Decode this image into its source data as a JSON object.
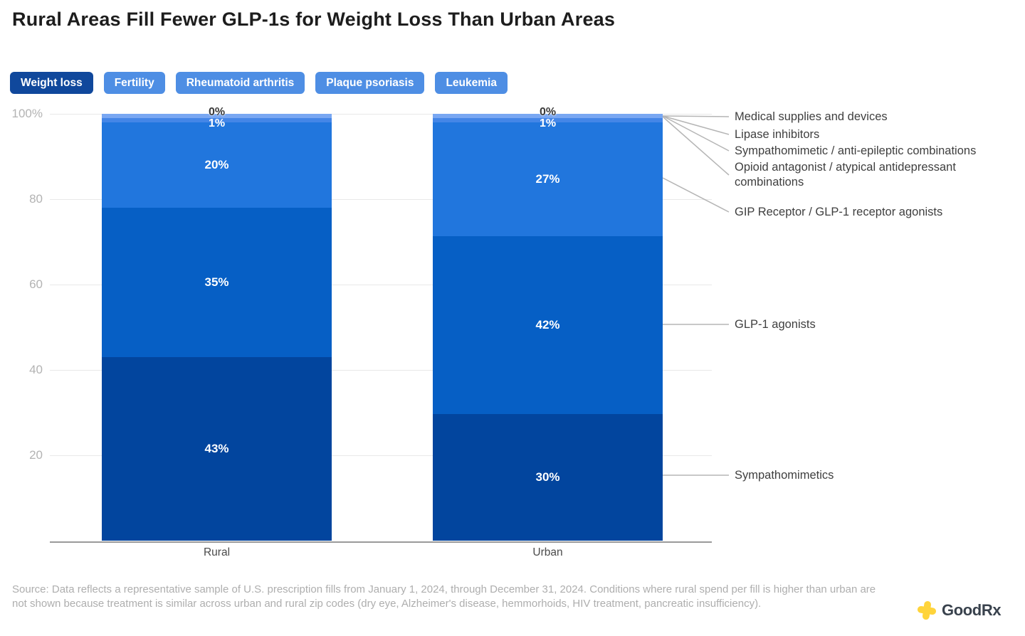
{
  "title": "Rural Areas Fill Fewer GLP-1s for Weight Loss Than Urban Areas",
  "tabs": [
    {
      "label": "Weight loss",
      "selected": true
    },
    {
      "label": "Fertility",
      "selected": false
    },
    {
      "label": "Rheumatoid arthritis",
      "selected": false
    },
    {
      "label": "Plaque psoriasis",
      "selected": false
    },
    {
      "label": "Leukemia",
      "selected": false
    }
  ],
  "chart_data": {
    "type": "bar",
    "subtype": "stacked-percentage",
    "categories": [
      "Rural",
      "Urban"
    ],
    "unit": "%",
    "ylim": [
      0,
      100
    ],
    "yticks": [
      "100%",
      "80",
      "60",
      "40",
      "20"
    ],
    "grid": true,
    "series": [
      {
        "name": "Medical supplies and devices",
        "values": [
          0,
          0
        ],
        "color": "#cfe0fa"
      },
      {
        "name": "Lipase inhibitors",
        "values": [
          0,
          0
        ],
        "color": "#a6c4f7"
      },
      {
        "name": "Sympathomimetic / anti-epileptic combinations",
        "values": [
          1,
          1
        ],
        "color": "#79a7f2"
      },
      {
        "name": "Opioid antagonist / atypical antidepressant combinations",
        "values": [
          1,
          1
        ],
        "color": "#4486e7"
      },
      {
        "name": "GIP Receptor / GLP-1 receptor agonists",
        "values": [
          20,
          27
        ],
        "color": "#2176DD"
      },
      {
        "name": "GLP-1 agonists",
        "values": [
          35,
          42
        ],
        "color": "#065FC5"
      },
      {
        "name": "Sympathomimetics",
        "values": [
          43,
          30
        ],
        "color": "#02459E"
      }
    ],
    "bar_top_labels": [
      "0%",
      "1%"
    ],
    "segment_labels": {
      "Rural": [
        "0%",
        "1%",
        "20%",
        "35%",
        "43%"
      ],
      "Urban": [
        "0%",
        "1%",
        "27%",
        "42%",
        "30%"
      ]
    },
    "legend_position": "right"
  },
  "source": "Source: Data reflects a representative sample of U.S. prescription fills from January 1, 2024, through December 31, 2024. Conditions where rural spend per fill is higher than urban are not shown because treatment is similar across urban and rural zip codes (dry eye, Alzheimer's disease, hemmorhoids, HIV treatment, pancreatic insufficiency).",
  "logo": {
    "text": "GoodRx",
    "icon": "goodrx-cross-icon",
    "icon_color": "#FFD43B"
  },
  "colors": {
    "tab_selected": "#10489c",
    "tab_unselected": "#4e8ee4",
    "grid": "#e8e8e8",
    "axis": "#9a9a9a",
    "leader_line": "#b5b5b5",
    "tick_text": "#b3b3b3",
    "legend_text": "#3f3f3f"
  }
}
